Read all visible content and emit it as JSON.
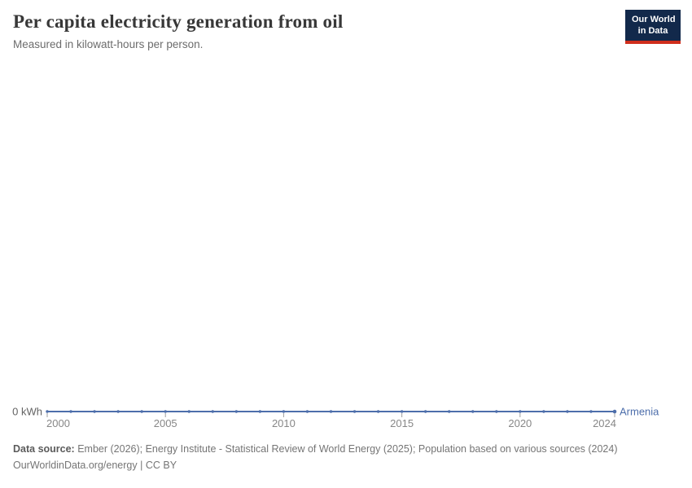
{
  "header": {
    "title": "Per capita electricity generation from oil",
    "subtitle": "Measured in kilowatt-hours per person."
  },
  "logo": {
    "line1": "Our World",
    "line2": "in Data",
    "bg_color": "#12294b",
    "accent_color": "#cf2e1c"
  },
  "chart_data": {
    "type": "line",
    "title": "Per capita electricity generation from oil",
    "subtitle": "Measured in kilowatt-hours per person.",
    "x": [
      2000,
      2001,
      2002,
      2003,
      2004,
      2005,
      2006,
      2007,
      2008,
      2009,
      2010,
      2011,
      2012,
      2013,
      2014,
      2015,
      2016,
      2017,
      2018,
      2019,
      2020,
      2021,
      2022,
      2023,
      2024
    ],
    "series": [
      {
        "name": "Armenia",
        "color": "#4d6eab",
        "values": [
          0,
          0,
          0,
          0,
          0,
          0,
          0,
          0,
          0,
          0,
          0,
          0,
          0,
          0,
          0,
          0,
          0,
          0,
          0,
          0,
          0,
          0,
          0,
          0,
          0
        ]
      }
    ],
    "x_ticks": [
      2000,
      2005,
      2010,
      2015,
      2020,
      2024
    ],
    "y_axis_label": "0 kWh",
    "ylim": [
      0,
      null
    ],
    "grid": false,
    "legend_position": "end-of-line",
    "tick_color": "#9e9e9e",
    "tick_label_color": "#878787",
    "y_label_color": "#636363"
  },
  "footer": {
    "data_source_label": "Data source:",
    "data_source_text": " Ember (2026); Energy Institute - Statistical Review of World Energy (2025); Population based on various sources (2024)",
    "url": "OurWorldinData.org/energy",
    "separator": " | ",
    "license": "CC BY"
  }
}
